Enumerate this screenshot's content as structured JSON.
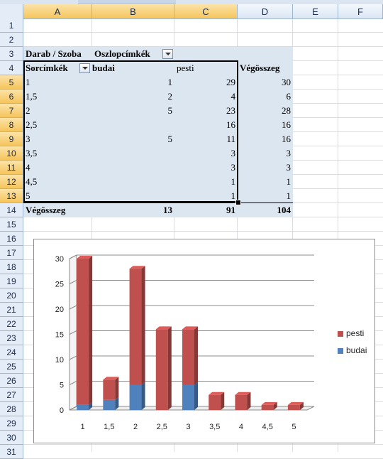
{
  "columns": [
    "A",
    "B",
    "C",
    "D",
    "E",
    "F"
  ],
  "rows": [
    "1",
    "2",
    "3",
    "4",
    "5",
    "6",
    "7",
    "8",
    "9",
    "10",
    "11",
    "12",
    "13",
    "14",
    "15",
    "16",
    "17",
    "18",
    "19",
    "20",
    "21",
    "22",
    "23",
    "24",
    "25",
    "26",
    "27",
    "28",
    "29",
    "30",
    "31"
  ],
  "pivot": {
    "values_label": "Darab / Szoba",
    "col_labels_caption": "Oszlopcímkék",
    "row_labels_caption": "Sorcímkék",
    "col_budai": "budai",
    "col_pesti": "pesti",
    "grand_total": "Végösszeg",
    "body": [
      {
        "label": "1",
        "budai": "1",
        "pesti": "29",
        "total": "30"
      },
      {
        "label": "1,5",
        "budai": "2",
        "pesti": "4",
        "total": "6"
      },
      {
        "label": "2",
        "budai": "5",
        "pesti": "23",
        "total": "28"
      },
      {
        "label": "2,5",
        "budai": "",
        "pesti": "16",
        "total": "16"
      },
      {
        "label": "3",
        "budai": "5",
        "pesti": "11",
        "total": "16"
      },
      {
        "label": "3,5",
        "budai": "",
        "pesti": "3",
        "total": "3"
      },
      {
        "label": "4",
        "budai": "",
        "pesti": "3",
        "total": "3"
      },
      {
        "label": "4,5",
        "budai": "",
        "pesti": "1",
        "total": "1"
      },
      {
        "label": "5",
        "budai": "",
        "pesti": "1",
        "total": "1"
      }
    ],
    "totals": {
      "label": "Végösszeg",
      "budai": "13",
      "pesti": "91",
      "total": "104"
    }
  },
  "chart_data": {
    "type": "bar",
    "stacked": true,
    "categories": [
      "1",
      "1,5",
      "2",
      "2,5",
      "3",
      "3,5",
      "4",
      "4,5",
      "5"
    ],
    "series": [
      {
        "name": "budai",
        "color": "#4f81bd",
        "values": [
          1,
          2,
          5,
          0,
          5,
          0,
          0,
          0,
          0
        ]
      },
      {
        "name": "pesti",
        "color": "#c0504d",
        "values": [
          29,
          4,
          23,
          16,
          11,
          3,
          3,
          1,
          1
        ]
      }
    ],
    "ylim": [
      0,
      30
    ],
    "yticks": [
      "0",
      "5",
      "10",
      "15",
      "20",
      "25",
      "30"
    ],
    "grid": true,
    "legend": "right"
  }
}
